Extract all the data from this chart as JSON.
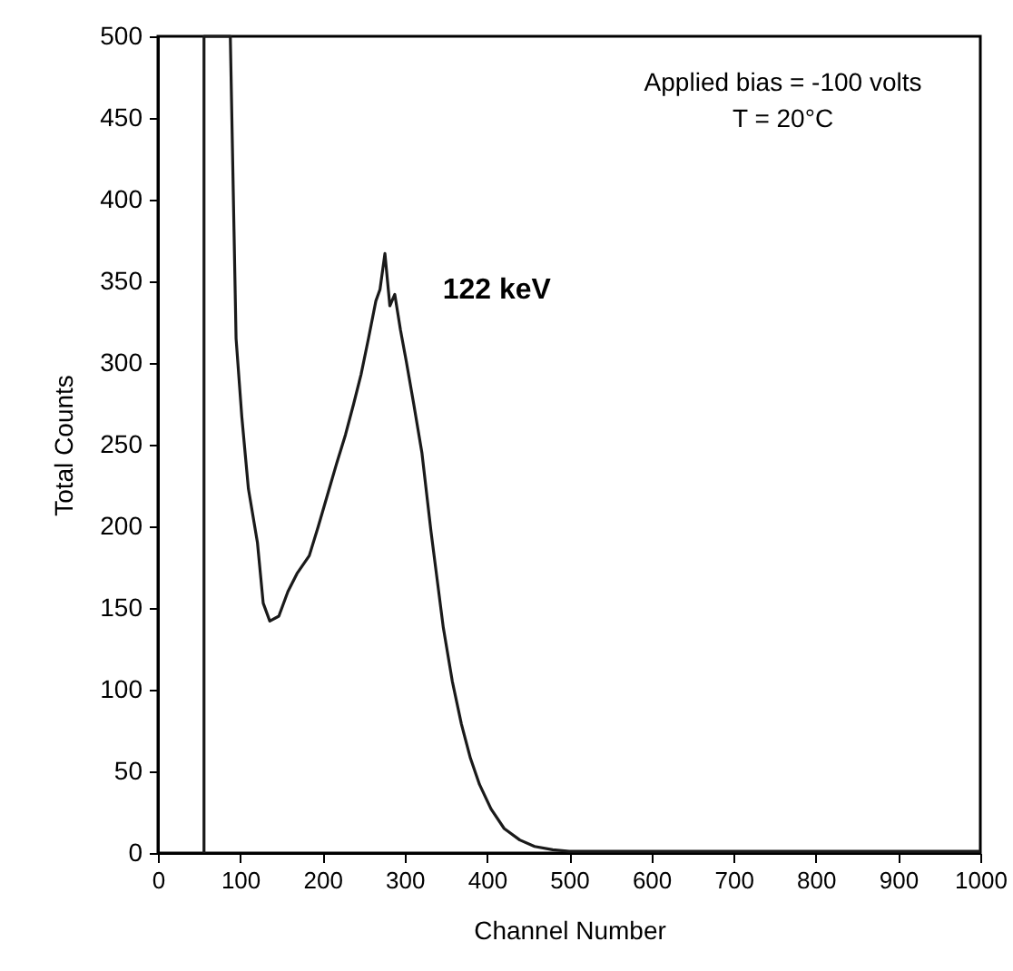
{
  "chart_data": {
    "type": "line",
    "xlabel": "Channel Number",
    "ylabel": "Total Counts",
    "annotations": [
      "Applied bias = -100 volts",
      "T = 20°C",
      {
        "text": "122 keV",
        "x": 280,
        "y": 345
      }
    ],
    "x": [
      56,
      56,
      88,
      95,
      102,
      110,
      121,
      128,
      136,
      147,
      158,
      169,
      184,
      195,
      206,
      217,
      228,
      238,
      247,
      256,
      265,
      270,
      276,
      282,
      288,
      295,
      302,
      311,
      321,
      332,
      347,
      358,
      369,
      380,
      391,
      405,
      421,
      440,
      458,
      480,
      500,
      600,
      700,
      800,
      900,
      1000
    ],
    "series": [
      {
        "color": "#1a1a1a",
        "values": [
          0,
          500,
          500,
          315,
          267,
          223,
          190,
          153,
          142,
          145,
          160,
          171,
          182,
          200,
          219,
          238,
          256,
          275,
          293,
          315,
          338,
          345,
          367,
          335,
          342,
          320,
          301,
          275,
          245,
          197,
          138,
          105,
          79,
          58,
          42,
          27,
          15,
          8,
          4,
          2,
          1,
          1,
          1,
          1,
          1,
          1
        ]
      }
    ],
    "xlim": [
      0,
      1000
    ],
    "xticks": [
      0,
      100,
      200,
      300,
      400,
      500,
      600,
      700,
      800,
      900,
      1000
    ],
    "ylim": [
      0,
      500
    ],
    "yticks": [
      0,
      50,
      100,
      150,
      200,
      250,
      300,
      350,
      400,
      450,
      500
    ],
    "grid": false,
    "marker": "none",
    "line_style": "solid"
  }
}
